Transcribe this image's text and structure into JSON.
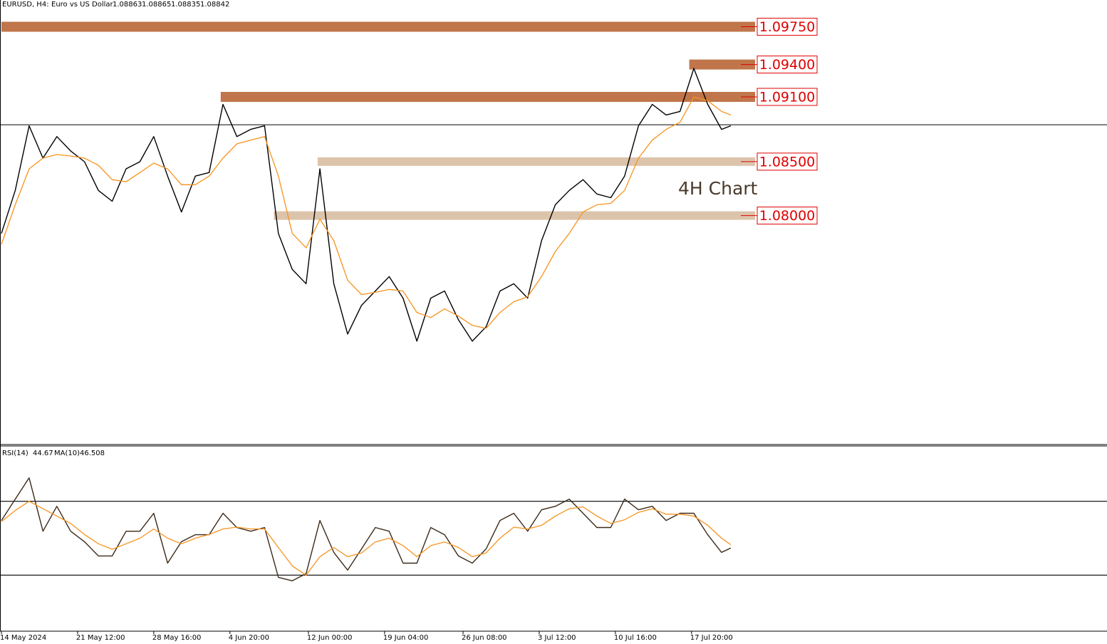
{
  "chart_data": [
    {
      "type": "line",
      "symbol": "EURUSD, H4:",
      "description": "Euro vs US Dollar",
      "ohlc": [
        1.08863,
        1.08865,
        1.08835,
        1.08842
      ],
      "annotation": "4H Chart",
      "x": [
        0,
        6,
        12,
        18,
        24,
        30,
        36,
        42,
        48,
        54,
        60,
        66,
        72,
        78,
        84,
        90,
        96,
        102,
        108,
        114,
        120,
        126,
        132,
        138,
        144,
        150,
        156,
        162,
        168,
        174,
        180,
        186,
        192,
        198,
        204,
        210,
        216,
        222,
        228,
        234,
        240,
        246,
        252,
        258,
        264,
        270,
        276,
        282,
        288,
        294,
        300,
        306,
        312,
        316
      ],
      "xlim": [
        0,
        479
      ],
      "ylim": [
        1.05891,
        1.09998
      ],
      "series": [
        {
          "name": "Close",
          "color": "#000000",
          "values": [
            1.07834,
            1.08233,
            1.08832,
            1.08532,
            1.08732,
            1.08599,
            1.08499,
            1.08233,
            1.08133,
            1.08433,
            1.08499,
            1.08732,
            1.08366,
            1.08033,
            1.08366,
            1.08399,
            1.09031,
            1.08732,
            1.08799,
            1.08832,
            1.07834,
            1.07501,
            1.07368,
            1.08433,
            1.07368,
            1.06902,
            1.07168,
            1.07301,
            1.07434,
            1.07235,
            1.06836,
            1.07235,
            1.07301,
            1.07035,
            1.06836,
            1.06969,
            1.07301,
            1.07368,
            1.07235,
            1.07767,
            1.081,
            1.08233,
            1.08333,
            1.082,
            1.08166,
            1.08366,
            1.08832,
            1.09031,
            1.08932,
            1.08965,
            1.09364,
            1.09031,
            1.08799,
            1.08832
          ]
        },
        {
          "name": "MA",
          "color": "#f7931e",
          "values": [
            1.07734,
            1.081,
            1.08433,
            1.08532,
            1.08566,
            1.08552,
            1.08532,
            1.08466,
            1.08333,
            1.08313,
            1.08399,
            1.08486,
            1.08433,
            1.08286,
            1.08286,
            1.08366,
            1.08532,
            1.08665,
            1.08699,
            1.08732,
            1.08366,
            1.07834,
            1.07701,
            1.07967,
            1.07767,
            1.07401,
            1.07268,
            1.07288,
            1.07315,
            1.07301,
            1.07102,
            1.07055,
            1.07135,
            1.07068,
            1.06982,
            1.06955,
            1.07102,
            1.07202,
            1.07248,
            1.07434,
            1.07667,
            1.07834,
            1.08033,
            1.081,
            1.08113,
            1.08233,
            1.08532,
            1.08699,
            1.08799,
            1.08865,
            1.09098,
            1.09065,
            1.08965,
            1.08932
          ]
        }
      ],
      "zones": [
        {
          "value": 1.0975,
          "label": "1.09750",
          "start": 0,
          "color": "#c0764a"
        },
        {
          "value": 1.094,
          "label": "1.09400",
          "start": 298,
          "color": "#c0764a"
        },
        {
          "value": 1.091,
          "label": "1.09100",
          "start": 95,
          "color": "#c0764a"
        },
        {
          "value": 1.085,
          "label": "1.08500",
          "start": 137,
          "color": "#dcc4ab"
        },
        {
          "value": 1.08,
          "label": "1.08000",
          "start": 118,
          "color": "#dcc4ab"
        }
      ]
    },
    {
      "type": "line",
      "indicator": "RSI(14)",
      "rsi_value": 44.67,
      "ma_label": "MA(10)",
      "ma_value": 46.508,
      "x": [
        0,
        6,
        12,
        18,
        24,
        30,
        36,
        42,
        48,
        54,
        60,
        66,
        72,
        78,
        84,
        90,
        96,
        102,
        108,
        114,
        120,
        126,
        132,
        138,
        144,
        150,
        156,
        162,
        168,
        174,
        180,
        186,
        192,
        198,
        204,
        210,
        216,
        222,
        228,
        234,
        240,
        246,
        252,
        258,
        264,
        270,
        276,
        282,
        288,
        294,
        300,
        306,
        312,
        316
      ],
      "xlim": [
        0,
        479
      ],
      "ylim": [
        0,
        100
      ],
      "levels": [
        30,
        70
      ],
      "xticks": [
        {
          "value": 0,
          "label": "14 May 2024"
        },
        {
          "value": 33,
          "label": "21 May 12:00"
        },
        {
          "value": 66,
          "label": "28 May 16:00"
        },
        {
          "value": 99,
          "label": "4 Jun 20:00"
        },
        {
          "value": 133,
          "label": "12 Jun 00:00"
        },
        {
          "value": 166,
          "label": "19 Jun 04:00"
        },
        {
          "value": 200,
          "label": "26 Jun 08:00"
        },
        {
          "value": 233,
          "label": "3 Jul 12:00"
        },
        {
          "value": 266,
          "label": "10 Jul 16:00"
        },
        {
          "value": 299,
          "label": "17 Jul 20:00"
        }
      ],
      "series": [
        {
          "name": "RSI",
          "color": "#3b2a1a",
          "values": [
            59.6,
            71.2,
            82.7,
            53.8,
            67.3,
            53.8,
            48.1,
            40.4,
            40.4,
            53.8,
            53.8,
            63.5,
            36.5,
            48.1,
            51.9,
            51.9,
            63.5,
            55.8,
            53.8,
            55.8,
            28.8,
            26.9,
            30.8,
            59.6,
            42.3,
            32.7,
            44.2,
            55.8,
            53.8,
            36.5,
            36.5,
            55.8,
            51.9,
            40.4,
            36.5,
            44.2,
            59.6,
            63.5,
            53.8,
            65.4,
            67.3,
            71.2,
            63.5,
            55.8,
            55.8,
            71.2,
            65.4,
            67.3,
            59.6,
            63.5,
            63.5,
            51.9,
            42.3,
            44.7
          ]
        },
        {
          "name": "RSI MA",
          "color": "#f7931e",
          "values": [
            59,
            65,
            70,
            66,
            62,
            58,
            52,
            47,
            44,
            47,
            50,
            55,
            50,
            47,
            50,
            52,
            55,
            56,
            55,
            55,
            45,
            35,
            30,
            40,
            45,
            40,
            42,
            48,
            50,
            46,
            40,
            46,
            48,
            45,
            40,
            42,
            50,
            56,
            55,
            57,
            62,
            66,
            67,
            62,
            58,
            60,
            64,
            66,
            63,
            63,
            62,
            57,
            50,
            46.5
          ]
        }
      ]
    }
  ]
}
